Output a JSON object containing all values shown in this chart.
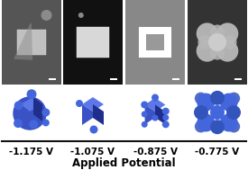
{
  "potentials": [
    "-1.175 V",
    "-1.075 V",
    "-0.875 V",
    "-0.775 V"
  ],
  "xlabel": "Applied Potential",
  "xlabel_fontsize": 8.5,
  "label_fontsize": 7.5,
  "bg_color": "#ffffff",
  "panel_bg_0": "#555555",
  "panel_bg_1": "#111111",
  "panel_bg_2": "#888888",
  "panel_bg_3": "#333333",
  "blue_face": "#3a52c4",
  "blue_dark": "#1e2e8a",
  "blue_highlight": "#5c78e8",
  "blue_sphere": "#4466dd",
  "blue_sphere2": "#3355bb"
}
